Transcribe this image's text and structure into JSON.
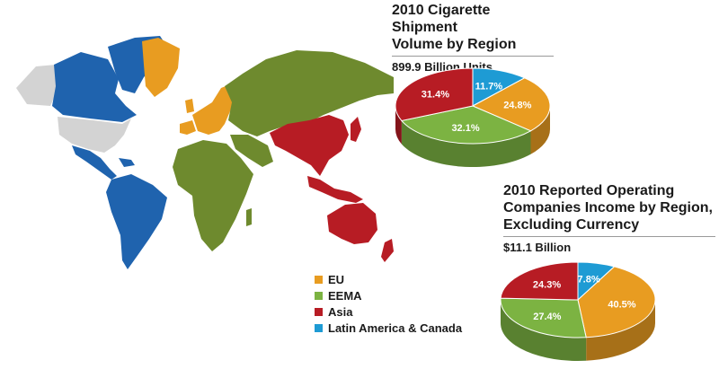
{
  "colors": {
    "EU": "#E89C21",
    "EEMA": "#7CB342",
    "Asia": "#B71C24",
    "Latin America & Canada": "#1E9BD4",
    "map_gray": "#D3D3D3",
    "map_blue": "#1F63AE",
    "map_olive": "#6E8A2E"
  },
  "chart_data": [
    {
      "type": "pie",
      "title": "2010 Cigarette Shipment Volume by Region",
      "subtitle": "899.9 Billion Units",
      "slices": [
        {
          "label": "Latin America & Canada",
          "value": 11.7,
          "text": "11.7%"
        },
        {
          "label": "EU",
          "value": 24.8,
          "text": "24.8%"
        },
        {
          "label": "EEMA",
          "value": 32.1,
          "text": "32.1%"
        },
        {
          "label": "Asia",
          "value": 31.4,
          "text": "31.4%"
        }
      ]
    },
    {
      "type": "pie",
      "title": "2010 Reported Operating Companies Income by Region, Excluding Currency",
      "subtitle": "$11.1 Billion",
      "slices": [
        {
          "label": "Latin America & Canada",
          "value": 7.8,
          "text": "7.8%"
        },
        {
          "label": "EU",
          "value": 40.5,
          "text": "40.5%"
        },
        {
          "label": "EEMA",
          "value": 27.4,
          "text": "27.4%"
        },
        {
          "label": "Asia",
          "value": 24.3,
          "text": "24.3%"
        }
      ]
    }
  ],
  "chart1": {
    "title_line1": "2010 Cigarette Shipment",
    "title_line2": "Volume by Region",
    "subtitle": "899.9 Billion Units"
  },
  "chart2": {
    "title_line1": "2010 Reported Operating",
    "title_line2": "Companies Income by Region,",
    "title_line3": "Excluding Currency",
    "subtitle": "$11.1 Billion"
  },
  "legend": [
    {
      "label": "EU",
      "color": "#E89C21"
    },
    {
      "label": "EEMA",
      "color": "#7CB342"
    },
    {
      "label": "Asia",
      "color": "#B71C24"
    },
    {
      "label": "Latin America & Canada",
      "color": "#1E9BD4"
    }
  ]
}
